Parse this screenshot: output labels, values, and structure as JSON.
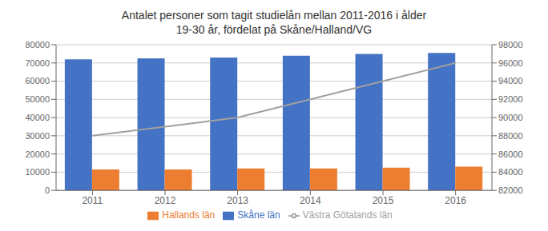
{
  "chart_data": {
    "type": "bar",
    "title": "Antalet personer som tagit studielån mellan 2011-2016 i ålder\n19-30 år, fördelat på Skåne/Halland/VG",
    "categories": [
      "2011",
      "2012",
      "2013",
      "2014",
      "2015",
      "2016"
    ],
    "series": [
      {
        "name": "Skåne län",
        "type": "bar",
        "color": "#4472C4",
        "values": [
          72000,
          72500,
          73000,
          74000,
          75000,
          75500
        ]
      },
      {
        "name": "Hallands län",
        "type": "bar",
        "color": "#ED7D31",
        "values": [
          11500,
          11500,
          12000,
          12000,
          12500,
          13000
        ]
      },
      {
        "name": "Västra Götalands län",
        "type": "line",
        "axis": "y2",
        "color": "#A0A0A0",
        "values": [
          88000,
          89000,
          90000,
          92000,
          94000,
          96000
        ]
      }
    ],
    "ylim": [
      0,
      80000
    ],
    "yticks": [
      0,
      10000,
      20000,
      30000,
      40000,
      50000,
      60000,
      70000,
      80000
    ],
    "y2lim": [
      82000,
      98000
    ],
    "y2ticks": [
      82000,
      84000,
      86000,
      88000,
      90000,
      92000,
      94000,
      96000,
      98000
    ],
    "grid": true,
    "legend": "bottom"
  }
}
